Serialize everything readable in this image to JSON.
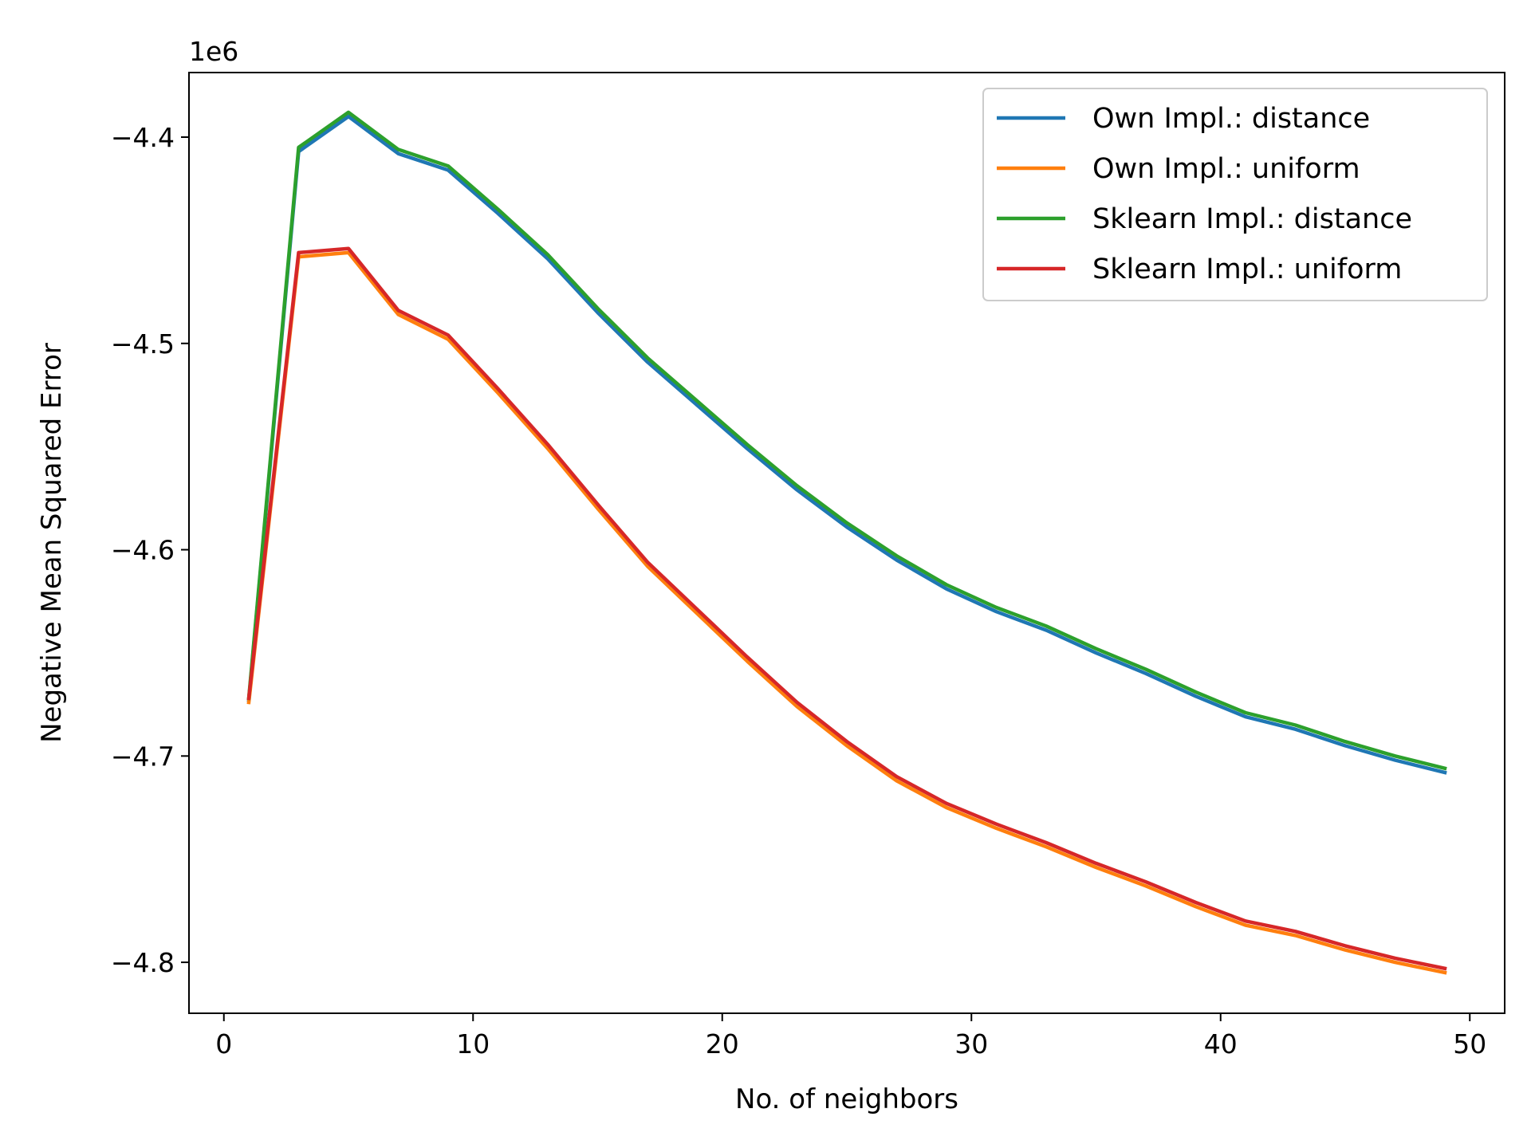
{
  "chart_data": {
    "type": "line",
    "title": "",
    "xlabel": "No. of neighbors",
    "ylabel": "Negative Mean Squared Error",
    "y_offset_label": "1e6",
    "xlim": [
      -1.4,
      51.4
    ],
    "ylim": [
      -4.8247,
      -4.3687
    ],
    "x_ticks": [
      0,
      10,
      20,
      30,
      40,
      50
    ],
    "x_tick_labels": [
      "0",
      "10",
      "20",
      "30",
      "40",
      "50"
    ],
    "y_ticks": [
      -4.4,
      -4.5,
      -4.6,
      -4.7,
      -4.8
    ],
    "y_tick_labels": [
      "−4.4",
      "−4.5",
      "−4.6",
      "−4.7",
      "−4.8"
    ],
    "grid": false,
    "legend_position": "top-right",
    "x": [
      1,
      3,
      5,
      7,
      9,
      11,
      13,
      15,
      17,
      19,
      21,
      23,
      25,
      27,
      29,
      31,
      33,
      35,
      37,
      39,
      41,
      43,
      45,
      47,
      49
    ],
    "series": [
      {
        "name": "Own Impl.: distance",
        "color": "#1f77b4",
        "values": [
          -4.673,
          -4.407,
          -4.39,
          -4.408,
          -4.416,
          -4.437,
          -4.459,
          -4.485,
          -4.509,
          -4.53,
          -4.551,
          -4.571,
          -4.589,
          -4.605,
          -4.619,
          -4.63,
          -4.639,
          -4.65,
          -4.66,
          -4.671,
          -4.681,
          -4.687,
          -4.695,
          -4.702,
          -4.708
        ]
      },
      {
        "name": "Own Impl.: uniform",
        "color": "#ff7f0e",
        "values": [
          -4.674,
          -4.458,
          -4.456,
          -4.486,
          -4.498,
          -4.524,
          -4.551,
          -4.58,
          -4.608,
          -4.631,
          -4.654,
          -4.676,
          -4.695,
          -4.712,
          -4.725,
          -4.735,
          -4.744,
          -4.754,
          -4.763,
          -4.773,
          -4.782,
          -4.787,
          -4.794,
          -4.8,
          -4.805
        ]
      },
      {
        "name": "Sklearn Impl.: distance",
        "color": "#2ca02c",
        "values": [
          -4.672,
          -4.405,
          -4.388,
          -4.406,
          -4.414,
          -4.435,
          -4.457,
          -4.483,
          -4.507,
          -4.528,
          -4.549,
          -4.569,
          -4.587,
          -4.603,
          -4.617,
          -4.628,
          -4.637,
          -4.648,
          -4.658,
          -4.669,
          -4.679,
          -4.685,
          -4.693,
          -4.7,
          -4.706
        ]
      },
      {
        "name": "Sklearn Impl.: uniform",
        "color": "#d62728",
        "values": [
          -4.672,
          -4.456,
          -4.454,
          -4.484,
          -4.496,
          -4.522,
          -4.549,
          -4.578,
          -4.606,
          -4.629,
          -4.652,
          -4.674,
          -4.693,
          -4.71,
          -4.723,
          -4.733,
          -4.742,
          -4.752,
          -4.761,
          -4.771,
          -4.78,
          -4.785,
          -4.792,
          -4.798,
          -4.803
        ]
      }
    ]
  }
}
